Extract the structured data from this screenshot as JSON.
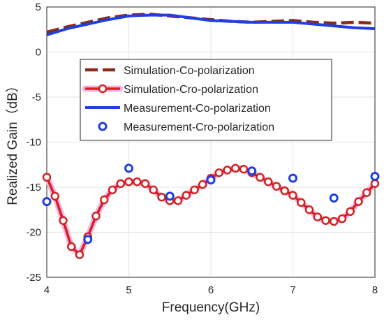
{
  "chart_data": {
    "type": "line",
    "title": "",
    "xlabel": "Frequency(GHz)",
    "ylabel": "Realized Gain（dB）",
    "xlim": [
      4,
      8
    ],
    "ylim": [
      -25,
      5
    ],
    "xticks": [
      "4",
      "5",
      "6",
      "7",
      "8"
    ],
    "yticks": [
      "5",
      "0",
      "-5",
      "-10",
      "-15",
      "-20",
      "-25"
    ],
    "grid": true,
    "legend_position": "upper-center",
    "colors": {
      "sim_co": "#8B2A16",
      "sim_cro": "#D62020",
      "sim_cro_glow": "#F2B5E8",
      "meas_co": "#1F3FE0",
      "meas_cro": "#1F3FE0"
    },
    "series": [
      {
        "name": "Simulation-Co-polarization",
        "style": "dashed",
        "x": [
          4.0,
          4.25,
          4.5,
          4.75,
          5.0,
          5.25,
          5.5,
          5.75,
          6.0,
          6.25,
          6.5,
          6.75,
          7.0,
          7.25,
          7.5,
          7.75,
          8.0
        ],
        "y": [
          2.2,
          2.8,
          3.3,
          3.8,
          4.1,
          4.2,
          4.0,
          3.8,
          3.6,
          3.4,
          3.3,
          3.4,
          3.5,
          3.3,
          3.2,
          3.3,
          3.2
        ]
      },
      {
        "name": "Simulation-Cro-polarization",
        "style": "line-circle",
        "x": [
          4.0,
          4.1,
          4.2,
          4.3,
          4.4,
          4.5,
          4.6,
          4.7,
          4.8,
          4.9,
          5.0,
          5.1,
          5.2,
          5.3,
          5.4,
          5.5,
          5.6,
          5.7,
          5.8,
          5.9,
          6.0,
          6.1,
          6.2,
          6.3,
          6.4,
          6.5,
          6.6,
          6.7,
          6.8,
          6.9,
          7.0,
          7.1,
          7.2,
          7.3,
          7.4,
          7.5,
          7.6,
          7.7,
          7.8,
          7.9,
          8.0
        ],
        "y": [
          -13.9,
          -16.0,
          -18.7,
          -21.6,
          -22.5,
          -20.5,
          -18.2,
          -16.4,
          -15.3,
          -14.6,
          -14.4,
          -14.4,
          -14.6,
          -15.3,
          -16.1,
          -16.5,
          -16.5,
          -15.9,
          -15.3,
          -14.7,
          -14.0,
          -13.4,
          -13.1,
          -12.9,
          -13.0,
          -13.4,
          -13.9,
          -14.4,
          -14.9,
          -15.4,
          -15.9,
          -16.7,
          -17.5,
          -18.3,
          -18.7,
          -18.8,
          -18.5,
          -17.7,
          -16.6,
          -15.6,
          -14.6
        ]
      },
      {
        "name": "Measurement-Co-polarization",
        "style": "solid",
        "x": [
          4.0,
          4.25,
          4.5,
          4.75,
          5.0,
          5.25,
          5.5,
          5.75,
          6.0,
          6.25,
          6.5,
          6.75,
          7.0,
          7.25,
          7.5,
          7.75,
          8.0
        ],
        "y": [
          1.9,
          2.6,
          3.1,
          3.6,
          4.0,
          4.1,
          4.1,
          3.8,
          3.5,
          3.4,
          3.3,
          3.3,
          3.3,
          3.1,
          2.9,
          2.7,
          2.6
        ]
      },
      {
        "name": "Measurement-Cro-polarization",
        "style": "circle-markers",
        "x": [
          4.0,
          4.5,
          5.0,
          5.5,
          6.0,
          6.5,
          7.0,
          7.5,
          8.0
        ],
        "y": [
          -16.6,
          -20.8,
          -12.9,
          -16.0,
          -14.2,
          -13.2,
          -14.0,
          -16.2,
          -13.8
        ]
      }
    ]
  }
}
